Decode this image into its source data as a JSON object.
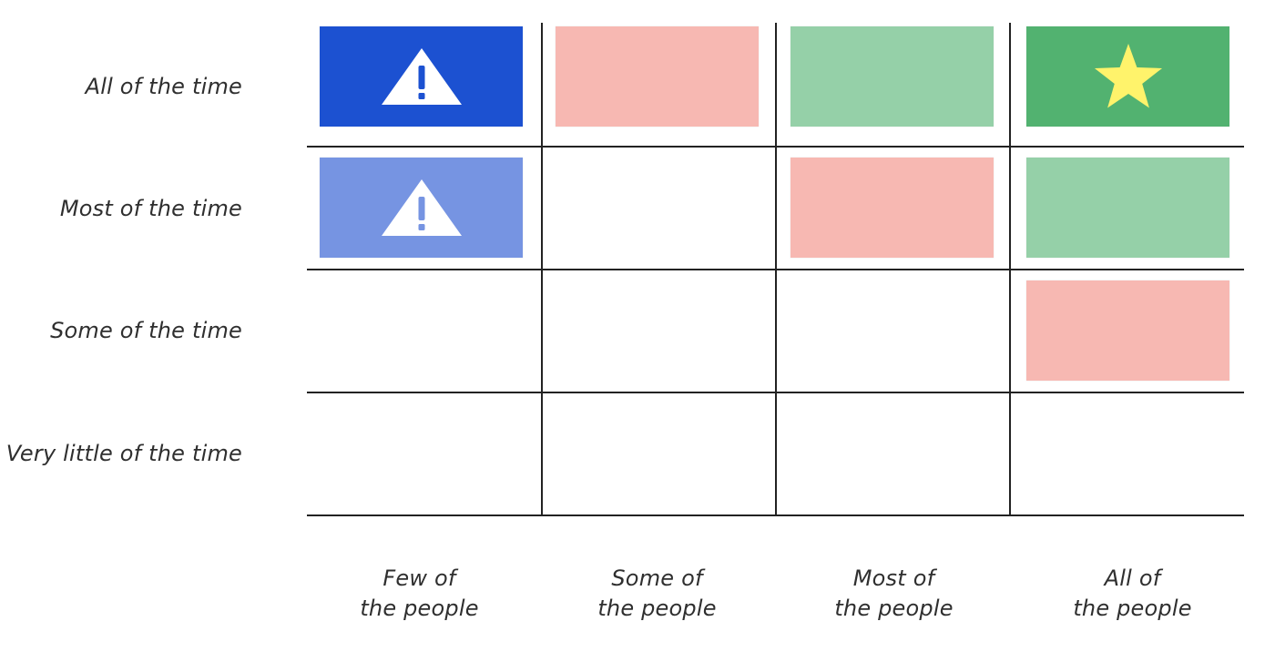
{
  "rows": [
    {
      "label": "All of the time"
    },
    {
      "label": "Most of the time"
    },
    {
      "label": "Some of the time"
    },
    {
      "label": "Very little of the time"
    }
  ],
  "columns": [
    {
      "line1": "Few of",
      "line2": "the people"
    },
    {
      "line1": "Some of",
      "line2": "the people"
    },
    {
      "line1": "Most of",
      "line2": "the people"
    },
    {
      "line1": "All of",
      "line2": "the people"
    }
  ],
  "colors": {
    "blue_dark": "#1c51d1",
    "blue_light": "#7694e2",
    "pink": "#f7b8b2",
    "green_light": "#95d0a8",
    "green_dark": "#52b270",
    "star": "#fff36b",
    "warning_fill": "#ffffff",
    "grid_line": "#222222"
  },
  "cells": [
    {
      "row": 0,
      "col": 0,
      "color": "blue_dark",
      "icon": "warning-icon"
    },
    {
      "row": 0,
      "col": 1,
      "color": "pink",
      "icon": null
    },
    {
      "row": 0,
      "col": 2,
      "color": "green_light",
      "icon": null
    },
    {
      "row": 0,
      "col": 3,
      "color": "green_dark",
      "icon": "star-icon"
    },
    {
      "row": 1,
      "col": 0,
      "color": "blue_light",
      "icon": "warning-icon"
    },
    {
      "row": 1,
      "col": 2,
      "color": "pink",
      "icon": null
    },
    {
      "row": 1,
      "col": 3,
      "color": "green_light",
      "icon": null
    },
    {
      "row": 2,
      "col": 3,
      "color": "pink",
      "icon": null
    }
  ]
}
